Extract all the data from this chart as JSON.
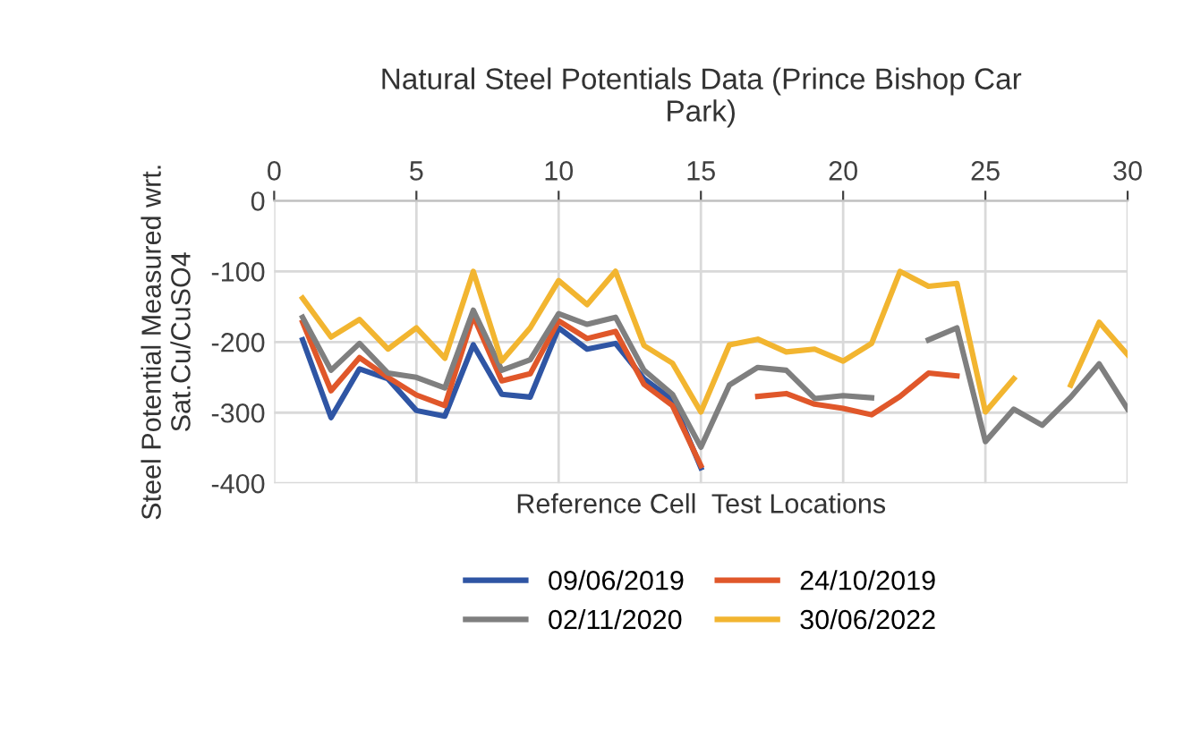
{
  "chart_data": {
    "type": "line",
    "title": "Natural Steel Potentials Data (Prince Bishop Car\nPark)",
    "xlabel": "Reference Cell  Test Locations",
    "ylabel": "Steel Potential Measured wrt.\nSat.Cu/CuSO4",
    "x": [
      1,
      2,
      3,
      4,
      5,
      6,
      7,
      8,
      9,
      10,
      11,
      12,
      13,
      14,
      15,
      16,
      17,
      18,
      19,
      20,
      21,
      22,
      23,
      24,
      25,
      26,
      27,
      28,
      29,
      30
    ],
    "series": [
      {
        "name": "09/06/2019",
        "color": "#2f55a4",
        "values": [
          -197,
          -307,
          -238,
          -252,
          -297,
          -305,
          -204,
          -274,
          -278,
          -180,
          -210,
          -202,
          -252,
          -282,
          -378,
          null,
          null,
          null,
          null,
          null,
          null,
          null,
          null,
          null,
          null,
          null,
          null,
          null,
          null,
          null
        ]
      },
      {
        "name": "24/10/2019",
        "color": "#e0572a",
        "values": [
          -172,
          -269,
          -222,
          -250,
          -275,
          -290,
          -163,
          -255,
          -245,
          -170,
          -195,
          -185,
          -260,
          -290,
          -375,
          null,
          -277,
          -273,
          -288,
          -294,
          -303,
          -277,
          -244,
          -248,
          null,
          null,
          null,
          null,
          null,
          null
        ]
      },
      {
        "name": "02/11/2020",
        "color": "#7f7f7f",
        "values": [
          -165,
          -240,
          -202,
          -244,
          -250,
          -265,
          -155,
          -240,
          -225,
          -160,
          -175,
          -165,
          -240,
          -274,
          -349,
          -261,
          -236,
          -240,
          -280,
          -276,
          -279,
          null,
          -197,
          -180,
          -341,
          -295,
          -318,
          -278,
          -231,
          -295
        ]
      },
      {
        "name": "30/06/2022",
        "color": "#f2b530",
        "values": [
          -138,
          -193,
          -168,
          -210,
          -180,
          -223,
          -100,
          -227,
          -180,
          -113,
          -147,
          -100,
          -205,
          -230,
          -299,
          -204,
          -196,
          -214,
          -210,
          -227,
          -202,
          -100,
          -121,
          -117,
          -299,
          -252,
          null,
          -261,
          -172,
          -218
        ]
      }
    ],
    "xlim": [
      0,
      30
    ],
    "xticks": [
      0,
      5,
      10,
      15,
      20,
      25,
      30
    ],
    "ylim": [
      -400,
      0
    ],
    "yticks": [
      0,
      -100,
      -200,
      -300,
      -400
    ],
    "grid": true,
    "legend": "bottom",
    "line_style": "solid",
    "marker": "none"
  }
}
